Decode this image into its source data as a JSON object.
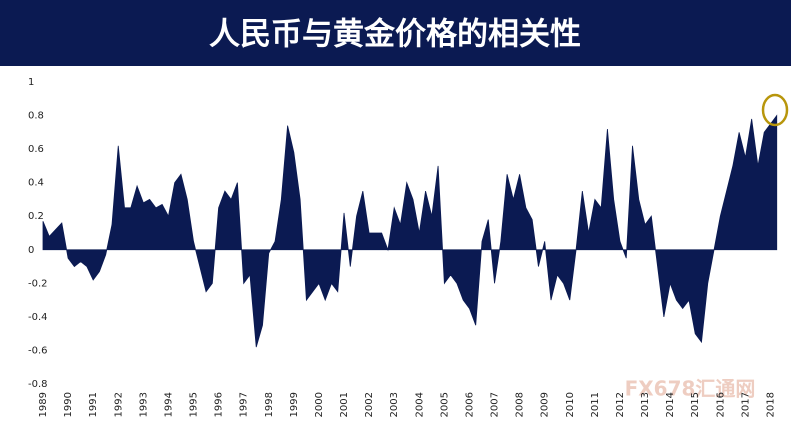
{
  "chart_data": {
    "type": "area",
    "title": "人民币与黄金价格的相关性",
    "watermark": "FX678汇通网",
    "color": "#0b1a52",
    "x": [
      1989.0,
      1989.25,
      1989.5,
      1989.75,
      1990.0,
      1990.25,
      1990.5,
      1990.75,
      1991.0,
      1991.25,
      1991.5,
      1991.75,
      1992.0,
      1992.25,
      1992.5,
      1992.75,
      1993.0,
      1993.25,
      1993.5,
      1993.75,
      1994.0,
      1994.25,
      1994.5,
      1994.75,
      1995.0,
      1995.25,
      1995.5,
      1995.75,
      1996.0,
      1996.25,
      1996.5,
      1996.75,
      1997.0,
      1997.25,
      1997.5,
      1997.75,
      1998.0,
      1998.25,
      1998.5,
      1998.75,
      1999.0,
      1999.25,
      1999.5,
      1999.75,
      2000.0,
      2000.25,
      2000.5,
      2000.75,
      2001.0,
      2001.25,
      2001.5,
      2001.75,
      2002.0,
      2002.25,
      2002.5,
      2002.75,
      2003.0,
      2003.25,
      2003.5,
      2003.75,
      2004.0,
      2004.25,
      2004.5,
      2004.75,
      2005.0,
      2005.25,
      2005.5,
      2005.75,
      2006.0,
      2006.25,
      2006.5,
      2006.75,
      2007.0,
      2007.25,
      2007.5,
      2007.75,
      2008.0,
      2008.25,
      2008.5,
      2008.75,
      2009.0,
      2009.25,
      2009.5,
      2009.75,
      2010.0,
      2010.25,
      2010.5,
      2010.75,
      2011.0,
      2011.25,
      2011.5,
      2011.75,
      2012.0,
      2012.25,
      2012.5,
      2012.75,
      2013.0,
      2013.25,
      2013.5,
      2013.75,
      2014.0,
      2014.25,
      2014.5,
      2014.75,
      2015.0,
      2015.25,
      2015.5,
      2015.75,
      2016.0,
      2016.25,
      2016.5,
      2016.75,
      2017.0,
      2017.25,
      2017.5,
      2017.75,
      2018.0,
      2018.25
    ],
    "values": [
      0.17,
      0.08,
      0.12,
      0.16,
      -0.05,
      -0.1,
      -0.07,
      -0.1,
      -0.18,
      -0.13,
      -0.03,
      0.15,
      0.62,
      0.25,
      0.25,
      0.38,
      0.28,
      0.3,
      0.25,
      0.27,
      0.2,
      0.4,
      0.45,
      0.3,
      0.05,
      -0.1,
      -0.25,
      -0.2,
      0.25,
      0.35,
      0.3,
      0.4,
      -0.2,
      -0.15,
      -0.58,
      -0.45,
      -0.02,
      0.05,
      0.3,
      0.74,
      0.58,
      0.3,
      -0.3,
      -0.25,
      -0.2,
      -0.3,
      -0.2,
      -0.25,
      0.22,
      -0.1,
      0.2,
      0.35,
      0.1,
      0.1,
      0.1,
      0.0,
      0.25,
      0.15,
      0.4,
      0.3,
      0.1,
      0.35,
      0.2,
      0.5,
      -0.2,
      -0.15,
      -0.2,
      -0.3,
      -0.35,
      -0.45,
      0.05,
      0.18,
      -0.2,
      0.05,
      0.45,
      0.3,
      0.45,
      0.25,
      0.18,
      -0.1,
      0.05,
      -0.3,
      -0.15,
      -0.2,
      -0.3,
      0.0,
      0.35,
      0.1,
      0.3,
      0.25,
      0.72,
      0.3,
      0.05,
      -0.05,
      0.62,
      0.3,
      0.15,
      0.2,
      -0.1,
      -0.4,
      -0.2,
      -0.3,
      -0.35,
      -0.3,
      -0.5,
      -0.55,
      -0.2,
      0.0,
      0.2,
      0.35,
      0.5,
      0.7,
      0.55,
      0.78,
      0.5,
      0.7,
      0.75,
      0.8
    ],
    "xlim": [
      1989,
      2018.3
    ],
    "xticks": [
      1989,
      1990,
      1991,
      1992,
      1993,
      1994,
      1995,
      1996,
      1997,
      1998,
      1999,
      2000,
      2001,
      2002,
      2003,
      2004,
      2005,
      2006,
      2007,
      2008,
      2009,
      2010,
      2011,
      2012,
      2013,
      2014,
      2015,
      2016,
      2017,
      2018
    ],
    "ylim": [
      -0.8,
      1
    ],
    "yticks": [
      1,
      0.8,
      0.6,
      0.4,
      0.2,
      0,
      -0.2,
      -0.4,
      -0.6,
      -0.8
    ]
  }
}
